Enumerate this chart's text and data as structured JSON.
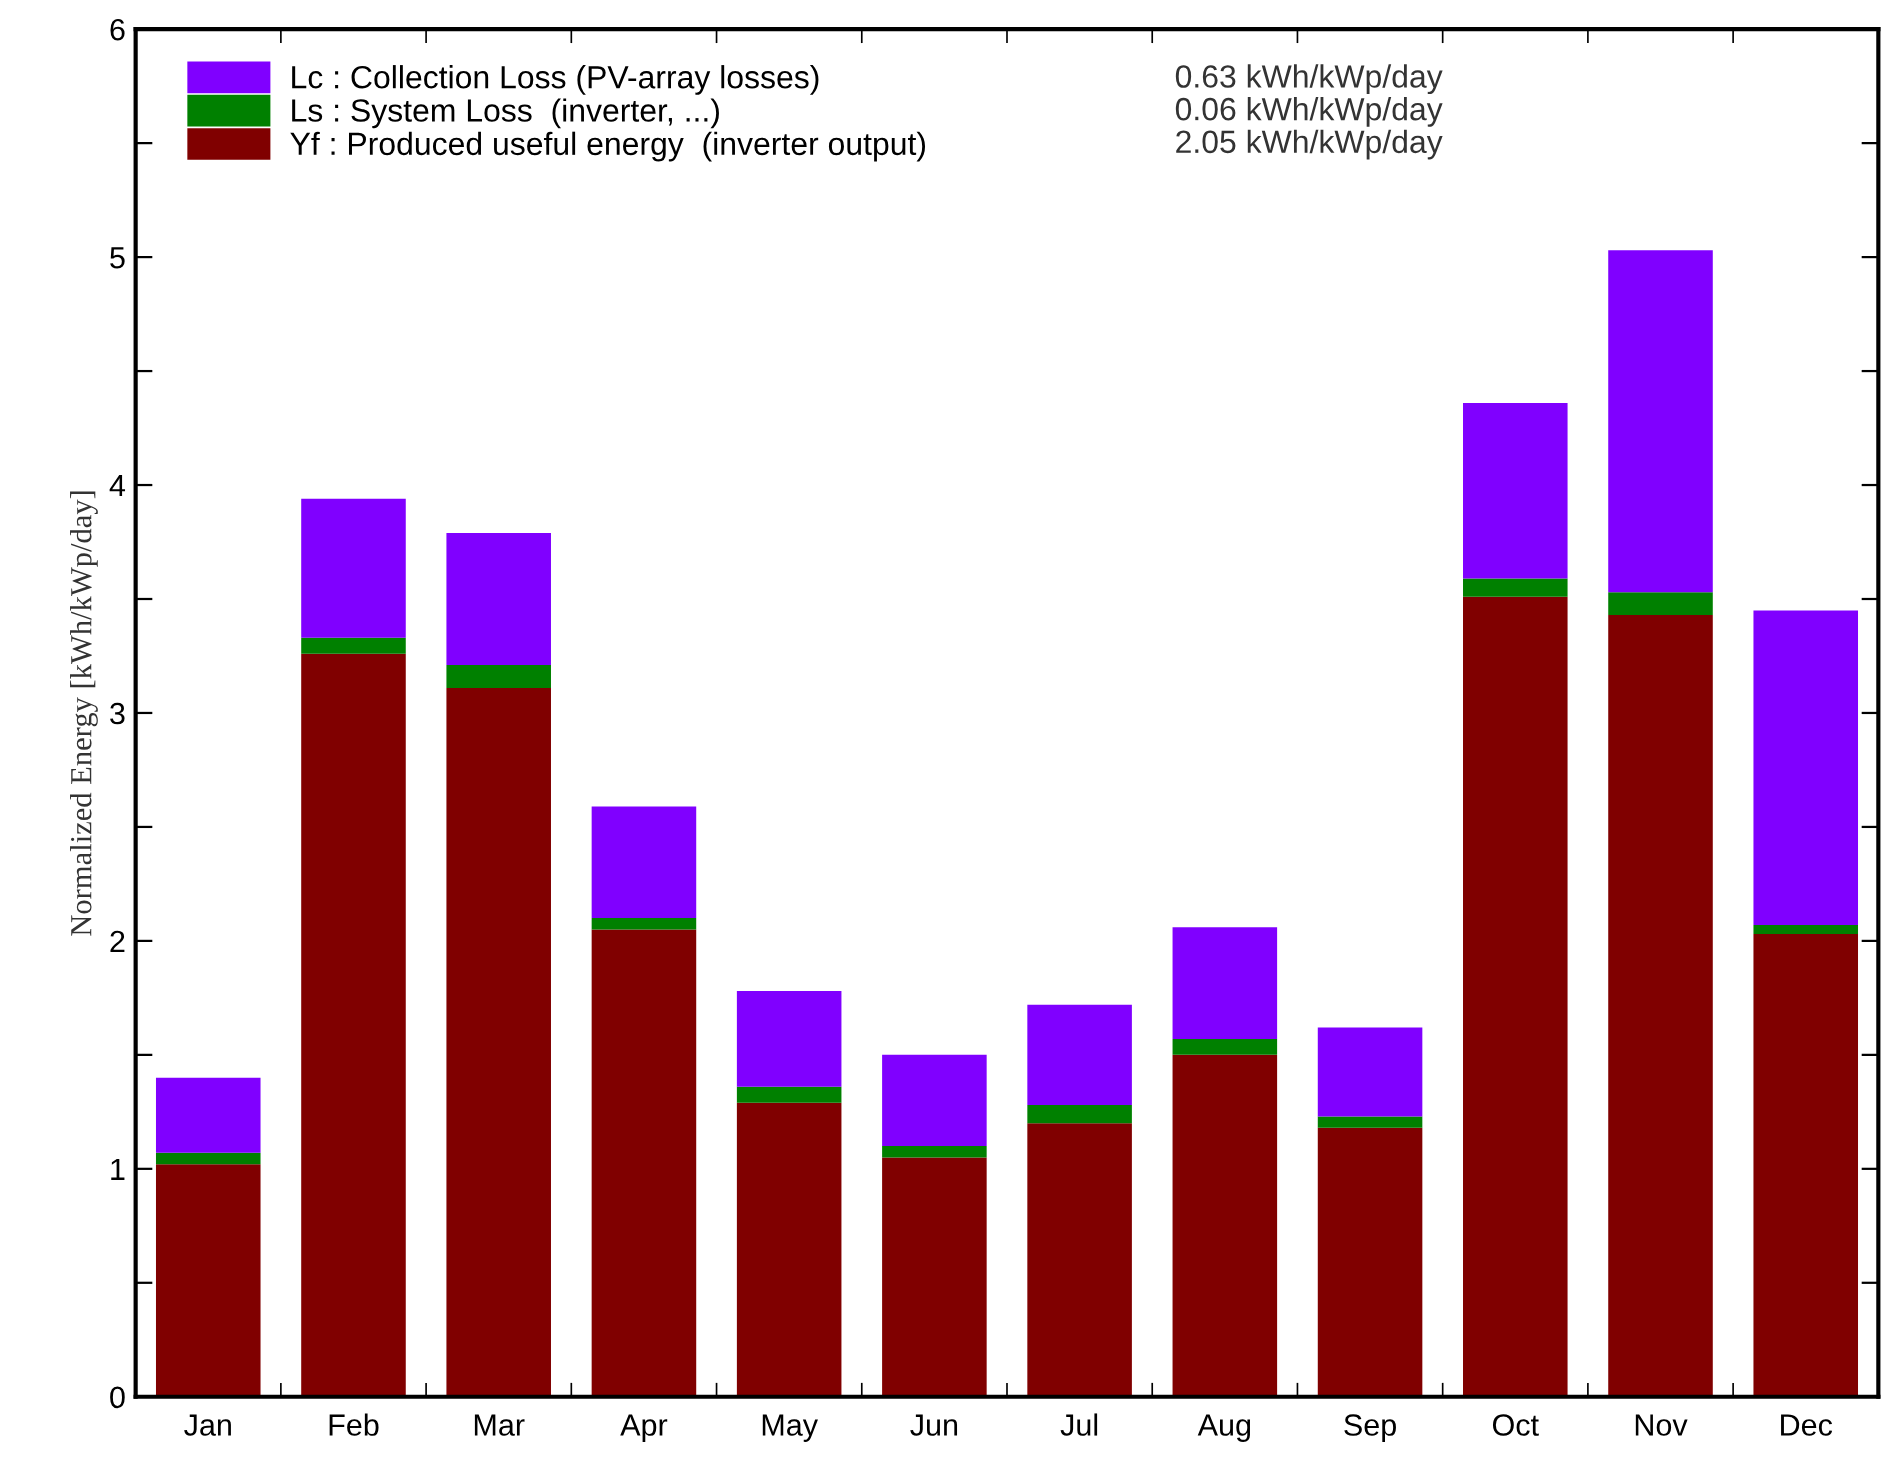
{
  "chart_data": {
    "type": "bar",
    "stacked": true,
    "ylabel": "Normalized Energy [kWh/kWp/day]",
    "categories": [
      "Jan",
      "Feb",
      "Mar",
      "Apr",
      "May",
      "Jun",
      "Jul",
      "Aug",
      "Sep",
      "Oct",
      "Nov",
      "Dec"
    ],
    "series": [
      {
        "name": "Yf : Produced useful energy  (inverter output)",
        "color": "#800000",
        "values": [
          1.02,
          3.26,
          3.11,
          2.05,
          1.29,
          1.05,
          1.2,
          1.5,
          1.18,
          3.51,
          3.43,
          2.03
        ]
      },
      {
        "name": "Ls : System Loss  (inverter, ...)",
        "color": "#008000",
        "values": [
          0.05,
          0.07,
          0.1,
          0.05,
          0.07,
          0.05,
          0.08,
          0.07,
          0.05,
          0.08,
          0.1,
          0.04
        ]
      },
      {
        "name": "Lc : Collection Loss (PV-array losses)",
        "color": "#8000ff",
        "values": [
          0.33,
          0.61,
          0.58,
          0.49,
          0.42,
          0.4,
          0.44,
          0.49,
          0.39,
          0.77,
          1.5,
          1.38
        ]
      }
    ],
    "annotations": [
      "2.05 kWh/kWp/day",
      "0.06 kWh/kWp/day",
      "0.63 kWh/kWp/day"
    ],
    "ylim": [
      0,
      6
    ],
    "yticks": [
      0,
      {
        "value": 0.5,
        "label": null
      },
      1,
      {
        "value": 1.5,
        "label": null
      },
      2,
      {
        "value": 2.5,
        "label": null
      },
      3,
      {
        "value": 3.5,
        "label": null
      },
      4,
      {
        "value": 4.5,
        "label": null
      },
      5,
      {
        "value": 5.5,
        "label": null
      },
      6
    ],
    "grid": false,
    "legend": "top left"
  }
}
